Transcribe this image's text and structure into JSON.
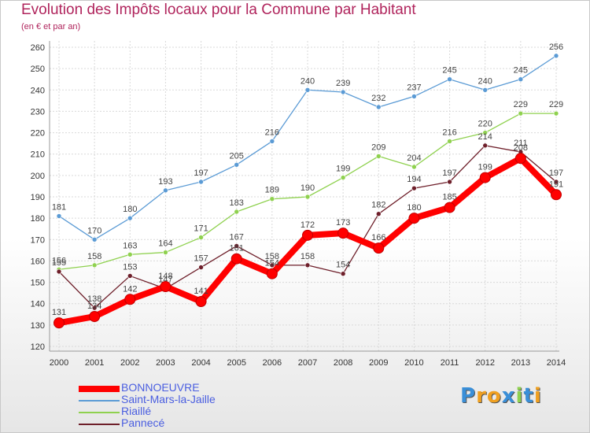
{
  "chart_data": {
    "type": "line",
    "title": "Evolution des Impôts locaux pour la Commune par Habitant",
    "subtitle": "(en € et par an)",
    "x": [
      "2000",
      "2001",
      "2002",
      "2003",
      "2004",
      "2005",
      "2006",
      "2007",
      "2008",
      "2009",
      "2010",
      "2011",
      "2012",
      "2013",
      "2014"
    ],
    "yticks": [
      "120",
      "130",
      "140",
      "150",
      "160",
      "170",
      "180",
      "190",
      "200",
      "210",
      "220",
      "230",
      "240",
      "250",
      "260"
    ],
    "ylim": [
      120,
      260
    ],
    "grid": true,
    "legend_position": "bottom-left",
    "series": [
      {
        "name": "Saint-Mars-la-Jaille",
        "color": "#5b9bd5",
        "values": [
          181,
          170,
          180,
          193,
          197,
          205,
          216,
          240,
          239,
          232,
          237,
          245,
          240,
          245,
          256
        ]
      },
      {
        "name": "Riaillé",
        "color": "#8fd14f",
        "values": [
          156,
          158,
          163,
          164,
          171,
          183,
          189,
          190,
          199,
          209,
          204,
          216,
          220,
          229,
          229
        ]
      },
      {
        "name": "Pannecé",
        "color": "#6e1f2a",
        "values": [
          155,
          138,
          153,
          147,
          157,
          167,
          158,
          158,
          154,
          182,
          194,
          197,
          214,
          211,
          197
        ]
      },
      {
        "name": "BONNOEUVRE",
        "color": "#ff0000",
        "values": [
          131,
          134,
          142,
          148,
          141,
          161,
          154,
          172,
          173,
          166,
          180,
          185,
          199,
          208,
          191
        ]
      }
    ]
  },
  "legend": [
    {
      "name": "BONNOEUVRE",
      "color": "#ff0000"
    },
    {
      "name": "Saint-Mars-la-Jaille",
      "color": "#5b9bd5"
    },
    {
      "name": "Riaillé",
      "color": "#8fd14f"
    },
    {
      "name": "Pannecé",
      "color": "#6e1f2a"
    }
  ],
  "logo": {
    "text": "Proxiti",
    "letters": [
      {
        "ch": "P",
        "color": "#3a8fd8"
      },
      {
        "ch": "r",
        "color": "#f0a020"
      },
      {
        "ch": "o",
        "color": "#f0a020"
      },
      {
        "ch": "x",
        "color": "#3a8fd8"
      },
      {
        "ch": "i",
        "color": "#8fd14f"
      },
      {
        "ch": "t",
        "color": "#3a8fd8"
      },
      {
        "ch": "i",
        "color": "#f0a020"
      }
    ]
  }
}
